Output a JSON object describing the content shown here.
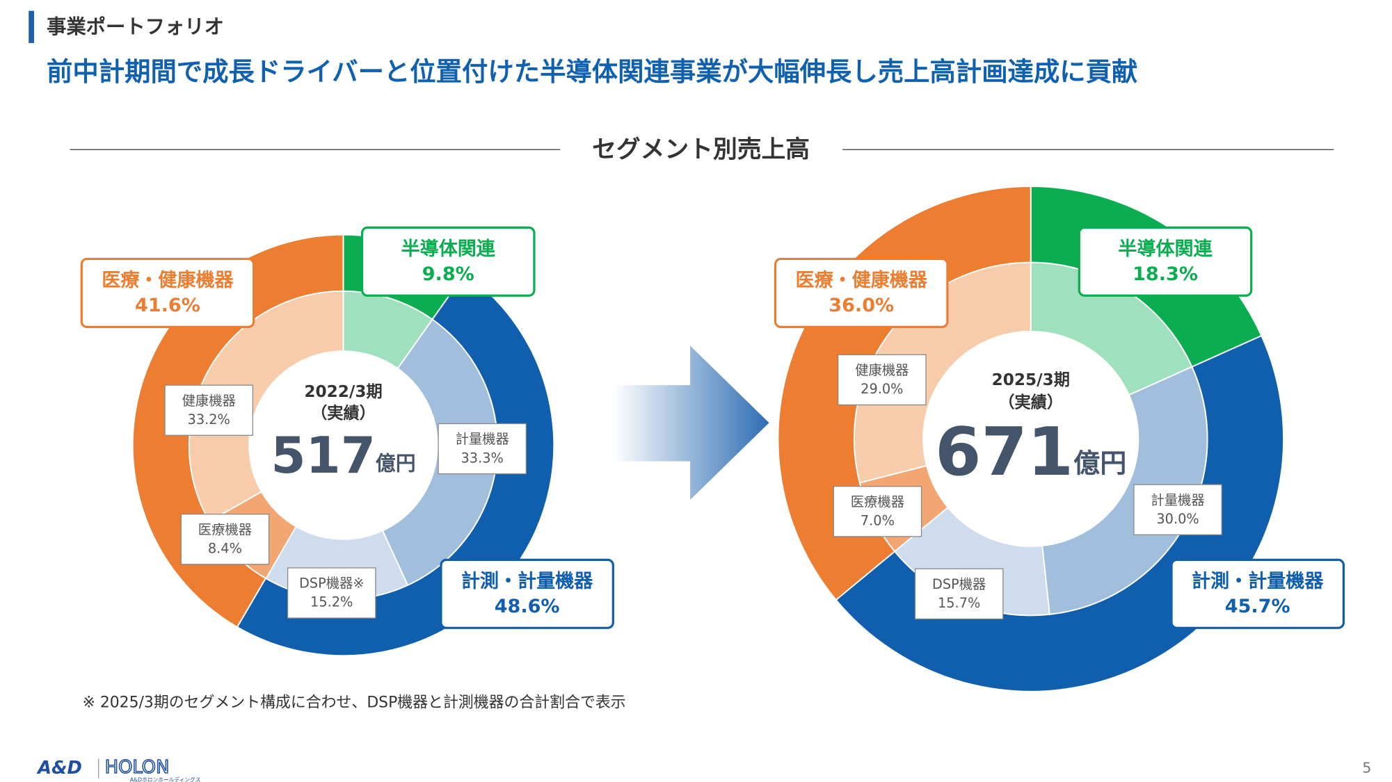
{
  "header": {
    "section": "事業ポートフォリオ",
    "headline": "前中計期間で成長ドライバーと位置付けた半導体関連事業が大幅伸長し売上高計画達成に貢献"
  },
  "chart_title": "セグメント別売上高",
  "chart_data": [
    {
      "type": "pie",
      "title": "2022/3期",
      "subtitle": "（実績）",
      "total": 517,
      "unit": "億円",
      "outer": {
        "categories": [
          "半導体関連",
          "計測・計量機器",
          "医療・健康機器"
        ],
        "values": [
          9.8,
          48.6,
          41.6
        ],
        "value_labels": [
          "9.8%",
          "48.6%",
          "41.6%"
        ],
        "colors": [
          "#0aad4f",
          "#105eae",
          "#ec7d31"
        ]
      },
      "inner": {
        "categories": [
          "半導体関連",
          "計量機器",
          "DSP機器※",
          "医療機器",
          "健康機器"
        ],
        "values": [
          9.8,
          33.3,
          15.2,
          8.4,
          33.2
        ],
        "value_labels": [
          null,
          "33.3%",
          "15.2%",
          "8.4%",
          "33.2%"
        ],
        "colors": [
          "#9fe0be",
          "#a2bedd",
          "#cedcee",
          "#f3a672",
          "#f8cbab"
        ]
      }
    },
    {
      "type": "pie",
      "title": "2025/3期",
      "subtitle": "（実績）",
      "total": 671,
      "unit": "億円",
      "outer": {
        "categories": [
          "半導体関連",
          "計測・計量機器",
          "医療・健康機器"
        ],
        "values": [
          18.3,
          45.7,
          36.0
        ],
        "value_labels": [
          "18.3%",
          "45.7%",
          "36.0%"
        ],
        "colors": [
          "#0aad4f",
          "#105eae",
          "#ec7d31"
        ]
      },
      "inner": {
        "categories": [
          "半導体関連",
          "計量機器",
          "DSP機器",
          "医療機器",
          "健康機器"
        ],
        "values": [
          18.3,
          30.0,
          15.7,
          7.0,
          29.0
        ],
        "value_labels": [
          null,
          "30.0%",
          "15.7%",
          "7.0%",
          "29.0%"
        ],
        "colors": [
          "#9fe0be",
          "#a2bedd",
          "#cedcee",
          "#f3a672",
          "#f8cbab"
        ]
      }
    }
  ],
  "footnote": "※ 2025/3期のセグメント構成に合わせ、DSP機器と計測機器の合計割合で表示",
  "logo": {
    "brand": "A&D",
    "name": "HOLON",
    "sub": "A&Dホロンホールディングス"
  },
  "page_number": 5
}
